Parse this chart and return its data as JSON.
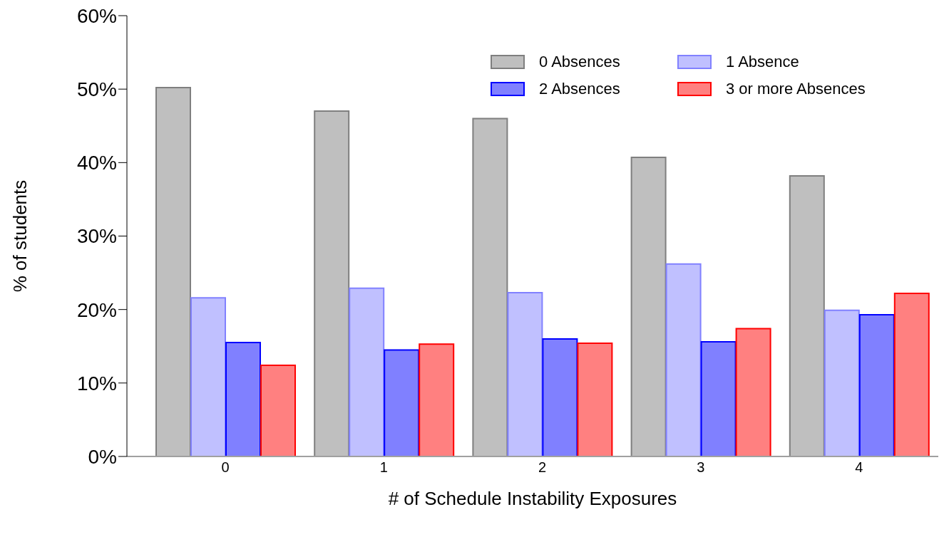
{
  "chart_data": {
    "type": "bar",
    "xlabel": "# of Schedule Instability Exposures",
    "ylabel": "% of students",
    "categories": [
      "0",
      "1",
      "2",
      "3",
      "4"
    ],
    "series": [
      {
        "name": "0 Absences",
        "color": "#bfbfbf",
        "values": [
          50.2,
          47.0,
          46.0,
          40.7,
          38.2
        ]
      },
      {
        "name": "1 Absence",
        "color": "#c0c0ff",
        "values": [
          21.6,
          22.9,
          22.3,
          26.2,
          19.9
        ]
      },
      {
        "name": "2 Absences",
        "color": "#8080ff",
        "values": [
          15.5,
          14.5,
          16.0,
          15.6,
          19.3
        ]
      },
      {
        "name": "3 or more Absences",
        "color": "#ff8080",
        "values": [
          12.4,
          15.3,
          15.4,
          17.4,
          22.2
        ]
      }
    ],
    "ylim": [
      0,
      60
    ],
    "yticks": [
      {
        "value": 0,
        "label": "0%"
      },
      {
        "value": 10,
        "label": "10%"
      },
      {
        "value": 20,
        "label": "20%"
      },
      {
        "value": 30,
        "label": "30%"
      },
      {
        "value": 40,
        "label": "40%"
      },
      {
        "value": 50,
        "label": "50%"
      },
      {
        "value": 60,
        "label": "60%"
      }
    ],
    "legend": "top right",
    "grid": false
  }
}
